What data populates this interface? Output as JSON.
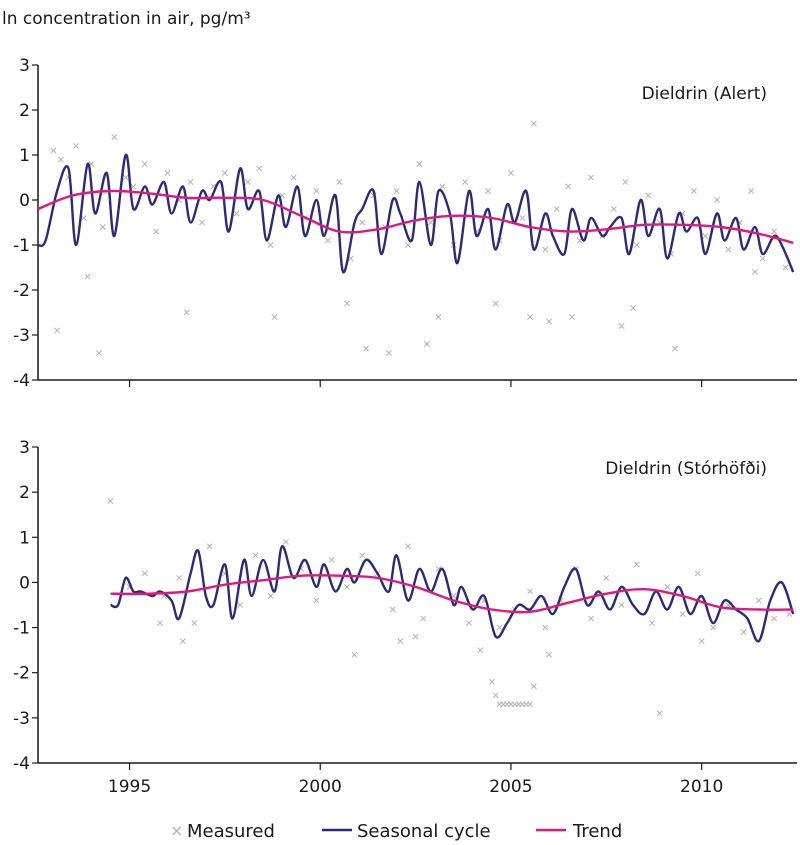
{
  "chart_data": {
    "type": "line",
    "ylabel": "ln concentration in air, pg/m³",
    "ylim": [
      -4,
      3
    ],
    "xlim": [
      1992.6,
      2012.5
    ],
    "yticks": [
      "3",
      "2",
      "1",
      "0",
      "-1",
      "-2",
      "-3",
      "-4"
    ],
    "xticks": [
      "1995",
      "2000",
      "2005",
      "2010"
    ],
    "legend": {
      "measured": "Measured",
      "seasonal": "Seasonal cycle",
      "trend": "Trend"
    },
    "colors": {
      "measured": "#b3b3b3",
      "seasonal": "#2e2a7a",
      "trend": "#e0197d"
    },
    "panels": [
      {
        "title": "Dieldrin (Alert)",
        "trend": {
          "x": [
            1992.6,
            1993.5,
            1994.5,
            1995.5,
            1996.5,
            1997.5,
            1998.5,
            1999.5,
            2000.5,
            2001.5,
            2002.5,
            2003.5,
            2004.5,
            2005.5,
            2006.5,
            2007.5,
            2008.5,
            2009.5,
            2010.5,
            2011.5,
            2012.4
          ],
          "y": [
            -0.2,
            0.1,
            0.2,
            0.15,
            0.05,
            0.05,
            0.0,
            -0.35,
            -0.7,
            -0.65,
            -0.45,
            -0.35,
            -0.4,
            -0.6,
            -0.7,
            -0.65,
            -0.55,
            -0.55,
            -0.6,
            -0.75,
            -0.95
          ]
        },
        "seasonal": {
          "x": [
            1992.6,
            1992.8,
            1993.1,
            1993.4,
            1993.6,
            1993.9,
            1994.1,
            1994.4,
            1994.6,
            1994.9,
            1995.1,
            1995.4,
            1995.6,
            1995.9,
            1996.1,
            1996.4,
            1996.6,
            1996.9,
            1997.1,
            1997.4,
            1997.6,
            1997.9,
            1998.1,
            1998.4,
            1998.6,
            1998.9,
            1999.1,
            1999.4,
            1999.6,
            1999.9,
            2000.1,
            2000.4,
            2000.6,
            2000.9,
            2001.1,
            2001.4,
            2001.6,
            2001.9,
            2002.1,
            2002.4,
            2002.6,
            2002.9,
            2003.1,
            2003.4,
            2003.6,
            2003.9,
            2004.1,
            2004.4,
            2004.6,
            2004.9,
            2005.1,
            2005.4,
            2005.6,
            2005.9,
            2006.1,
            2006.4,
            2006.6,
            2006.9,
            2007.1,
            2007.4,
            2007.6,
            2007.9,
            2008.1,
            2008.4,
            2008.6,
            2008.9,
            2009.1,
            2009.4,
            2009.6,
            2009.9,
            2010.1,
            2010.4,
            2010.6,
            2010.9,
            2011.1,
            2011.4,
            2011.6,
            2011.9,
            2012.1,
            2012.4
          ],
          "y": [
            -1.0,
            -0.9,
            0.2,
            0.7,
            -1.0,
            0.8,
            -0.3,
            0.6,
            -0.8,
            1.0,
            -0.2,
            0.3,
            -0.1,
            0.4,
            -0.3,
            0.3,
            -0.5,
            0.2,
            0.0,
            0.4,
            -0.7,
            0.7,
            -0.2,
            0.2,
            -0.9,
            0.1,
            -0.6,
            0.3,
            -0.8,
            0.0,
            -0.8,
            0.1,
            -1.6,
            -0.5,
            -0.2,
            0.2,
            -1.2,
            0.0,
            -0.3,
            -0.9,
            0.4,
            -1.0,
            0.2,
            -0.3,
            -1.4,
            0.2,
            -0.8,
            -0.2,
            -1.1,
            -0.1,
            -0.5,
            0.2,
            -1.1,
            -0.3,
            -0.8,
            -1.2,
            -0.2,
            -0.9,
            -0.4,
            -0.8,
            -0.6,
            -0.4,
            -1.2,
            0.0,
            -0.8,
            -0.2,
            -1.3,
            -0.3,
            -0.7,
            -0.4,
            -1.2,
            -0.3,
            -0.9,
            -0.4,
            -1.1,
            -0.6,
            -1.2,
            -0.8,
            -1.0,
            -1.6
          ]
        },
        "measured": {
          "x": [
            1993.0,
            1993.2,
            1993.4,
            1993.6,
            1993.8,
            1994.0,
            1994.3,
            1994.6,
            1994.9,
            1995.1,
            1995.4,
            1995.7,
            1996.0,
            1996.3,
            1996.6,
            1996.9,
            1997.2,
            1997.5,
            1997.8,
            1998.1,
            1998.4,
            1998.7,
            1999.0,
            1999.3,
            1999.6,
            1999.9,
            2000.2,
            2000.5,
            2000.8,
            2001.1,
            2001.4,
            2001.7,
            2002.0,
            2002.3,
            2002.6,
            2002.9,
            2003.2,
            2003.5,
            2003.8,
            2004.1,
            2004.4,
            2004.7,
            2005.0,
            2005.3,
            2005.6,
            2005.9,
            2006.2,
            2006.5,
            2006.8,
            2007.1,
            2007.4,
            2007.7,
            2008.0,
            2008.3,
            2008.6,
            2008.9,
            2009.2,
            2009.5,
            2009.8,
            2010.1,
            2010.4,
            2010.7,
            2011.0,
            2011.3,
            2011.6,
            2011.9,
            2012.2,
            1993.1,
            1993.9,
            1994.2,
            1996.5,
            1998.8,
            2000.7,
            2001.2,
            2001.8,
            2002.8,
            2003.1,
            2004.6,
            2005.5,
            2006.0,
            2006.6,
            2007.9,
            2008.2,
            2009.3,
            2011.4
          ],
          "y": [
            1.1,
            0.9,
            0.5,
            1.2,
            -0.4,
            0.8,
            -0.6,
            1.4,
            0.5,
            0.3,
            0.8,
            -0.7,
            0.6,
            0.0,
            0.4,
            -0.5,
            0.3,
            0.6,
            -0.3,
            0.4,
            0.7,
            -1.0,
            0.1,
            0.5,
            -0.4,
            0.2,
            -0.9,
            0.4,
            -1.3,
            -0.5,
            0.1,
            -0.6,
            0.2,
            -1.0,
            0.8,
            -0.5,
            0.3,
            -1.0,
            0.4,
            -0.7,
            0.2,
            -0.9,
            0.6,
            -0.4,
            1.7,
            -1.1,
            -0.2,
            0.3,
            -0.9,
            0.5,
            -0.8,
            -0.2,
            0.4,
            -1.0,
            0.1,
            -0.5,
            -1.2,
            -0.3,
            0.2,
            -0.8,
            0.0,
            -1.1,
            -0.5,
            0.2,
            -1.3,
            -0.7,
            -1.5,
            -2.9,
            -1.7,
            -3.4,
            -2.5,
            -2.6,
            -2.3,
            -3.3,
            -3.4,
            -3.2,
            -2.6,
            -2.3,
            -2.6,
            -2.7,
            -2.6,
            -2.8,
            -2.4,
            -3.3,
            -1.6
          ]
        }
      },
      {
        "title": "Dieldrin (Stórhöfði)",
        "trend": {
          "x": [
            1994.5,
            1995.5,
            1996.5,
            1997.5,
            1998.5,
            1999.5,
            2000.5,
            2001.5,
            2002.5,
            2003.5,
            2004.5,
            2005.5,
            2006.5,
            2007.5,
            2008.5,
            2009.5,
            2010.5,
            2011.5,
            2012.4
          ],
          "y": [
            -0.25,
            -0.25,
            -0.2,
            -0.05,
            0.05,
            0.15,
            0.15,
            0.1,
            -0.1,
            -0.4,
            -0.6,
            -0.65,
            -0.45,
            -0.25,
            -0.15,
            -0.3,
            -0.55,
            -0.6,
            -0.6
          ]
        },
        "seasonal": {
          "x": [
            1994.5,
            1994.7,
            1994.9,
            1995.1,
            1995.3,
            1995.6,
            1995.8,
            1996.1,
            1996.3,
            1996.6,
            1996.8,
            1997.0,
            1997.2,
            1997.5,
            1997.7,
            1998.0,
            1998.2,
            1998.5,
            1998.8,
            1999.0,
            1999.3,
            1999.6,
            1999.9,
            2000.1,
            2000.4,
            2000.7,
            2000.9,
            2001.2,
            2001.5,
            2001.8,
            2002.0,
            2002.3,
            2002.6,
            2002.9,
            2003.2,
            2003.5,
            2003.7,
            2004.0,
            2004.3,
            2004.6,
            2004.9,
            2005.2,
            2005.5,
            2005.8,
            2006.1,
            2006.4,
            2006.7,
            2007.0,
            2007.3,
            2007.6,
            2007.9,
            2008.2,
            2008.5,
            2008.8,
            2009.1,
            2009.4,
            2009.7,
            2010.0,
            2010.3,
            2010.6,
            2010.9,
            2011.2,
            2011.5,
            2011.8,
            2012.1,
            2012.4
          ],
          "y": [
            -0.5,
            -0.5,
            0.1,
            -0.2,
            -0.2,
            -0.3,
            -0.2,
            -0.4,
            -0.8,
            0.2,
            0.7,
            -0.3,
            -0.5,
            0.4,
            -0.8,
            0.5,
            -0.3,
            0.5,
            -0.2,
            0.8,
            0.1,
            0.5,
            -0.1,
            0.4,
            -0.2,
            0.3,
            0.0,
            0.5,
            0.2,
            -0.2,
            0.6,
            -0.4,
            0.3,
            -0.2,
            0.3,
            -0.5,
            -0.1,
            -0.6,
            -0.3,
            -1.2,
            -0.9,
            -0.5,
            -0.6,
            -0.3,
            -0.7,
            -0.1,
            0.3,
            -0.5,
            -0.2,
            -0.6,
            -0.1,
            -0.5,
            -0.7,
            -0.2,
            -0.6,
            -0.1,
            -0.7,
            -0.3,
            -0.9,
            -0.4,
            -0.6,
            -0.8,
            -1.3,
            -0.4,
            0.0,
            -0.7
          ]
        },
        "measured": {
          "x": [
            1994.5,
            1995.0,
            1995.4,
            1995.9,
            1996.3,
            1996.7,
            1997.1,
            1997.5,
            1997.9,
            1998.3,
            1998.7,
            1999.1,
            1999.5,
            1999.9,
            2000.3,
            2000.7,
            2001.1,
            2001.5,
            2001.9,
            2002.3,
            2002.7,
            2003.1,
            2003.5,
            2003.9,
            2004.3,
            2004.7,
            2005.1,
            2005.5,
            2005.9,
            2006.3,
            2006.7,
            2007.1,
            2007.5,
            2007.9,
            2008.3,
            2008.7,
            2009.1,
            2009.5,
            2009.9,
            2010.3,
            2010.7,
            2011.1,
            2011.5,
            2011.9,
            2012.3,
            1995.8,
            1996.4,
            2000.9,
            2002.1,
            2002.5,
            2004.2,
            2004.5,
            2004.6,
            2004.7,
            2004.8,
            2004.9,
            2005.0,
            2005.1,
            2005.2,
            2005.3,
            2005.4,
            2005.5,
            2005.6,
            2006.0,
            2008.9,
            2010.0
          ],
          "y": [
            1.8,
            -0.1,
            0.2,
            -0.3,
            0.1,
            -0.9,
            0.8,
            0.2,
            -0.5,
            0.6,
            -0.3,
            0.9,
            0.3,
            -0.4,
            0.5,
            -0.1,
            0.6,
            0.2,
            -0.6,
            0.8,
            -0.8,
            0.3,
            -0.3,
            -0.9,
            -0.4,
            -1.0,
            -0.6,
            -0.2,
            -1.0,
            -0.4,
            0.3,
            -0.8,
            0.1,
            -0.5,
            0.4,
            -0.9,
            -0.1,
            -0.7,
            0.2,
            -1.0,
            -0.5,
            -1.1,
            -0.4,
            -0.8,
            -0.7,
            -0.9,
            -1.3,
            -1.6,
            -1.3,
            -1.2,
            -1.5,
            -2.2,
            -2.5,
            -2.7,
            -2.7,
            -2.7,
            -2.7,
            -2.7,
            -2.7,
            -2.7,
            -2.7,
            -2.7,
            -2.3,
            -1.6,
            -2.9,
            -1.3
          ]
        }
      }
    ]
  }
}
